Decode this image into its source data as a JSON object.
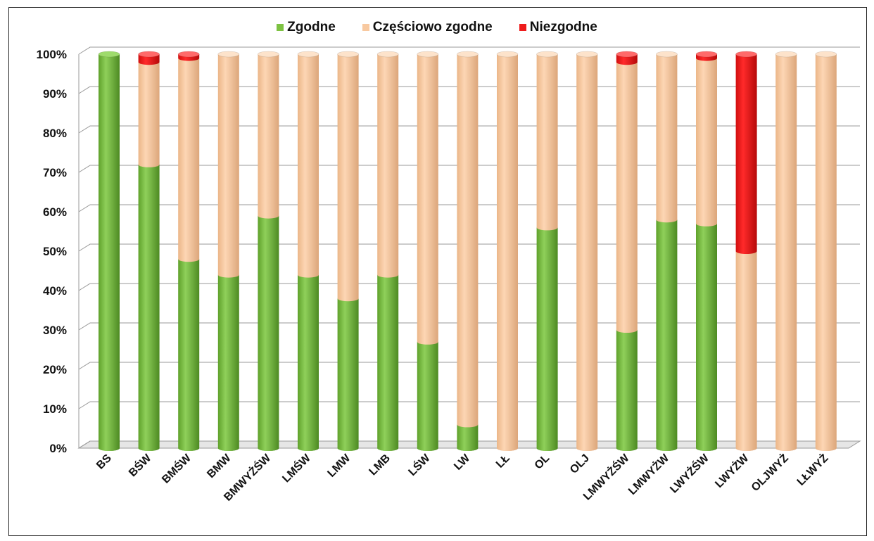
{
  "chart_data": {
    "type": "bar",
    "stacked": true,
    "percent_stacked": true,
    "title": "",
    "xlabel": "",
    "ylabel": "",
    "ylim": [
      0,
      100
    ],
    "ytick_labels": [
      "0%",
      "10%",
      "20%",
      "30%",
      "40%",
      "50%",
      "60%",
      "70%",
      "80%",
      "90%",
      "100%"
    ],
    "grid": true,
    "legend_position": "top",
    "categories": [
      "BS",
      "BŚW",
      "BMŚW",
      "BMW",
      "BMWYŻŚW",
      "LMŚW",
      "LMW",
      "LMB",
      "LŚW",
      "LW",
      "LŁ",
      "OL",
      "OLJ",
      "LMWYŻŚW",
      "LMWYŻW",
      "LWYŻŚW",
      "LWYŻW",
      "OLJWYŻ",
      "LŁWYŻ"
    ],
    "series": [
      {
        "name": "Zgodne",
        "color": "#7dc242",
        "values": [
          100,
          72,
          48,
          44,
          59,
          44,
          38,
          44,
          27,
          6,
          0,
          56,
          0,
          30,
          58,
          57,
          0,
          0,
          0
        ]
      },
      {
        "name": "Częściowo zgodne",
        "color": "#f8c9a0",
        "values": [
          0,
          26,
          51,
          56,
          41,
          56,
          62,
          56,
          73,
          94,
          100,
          44,
          100,
          68,
          42,
          42,
          50,
          100,
          100
        ]
      },
      {
        "name": "Niezgodne",
        "color": "#ee1c1c",
        "values": [
          0,
          2,
          1,
          0,
          0,
          0,
          0,
          0,
          0,
          0,
          0,
          0,
          0,
          2,
          0,
          1,
          50,
          0,
          0
        ]
      }
    ]
  }
}
